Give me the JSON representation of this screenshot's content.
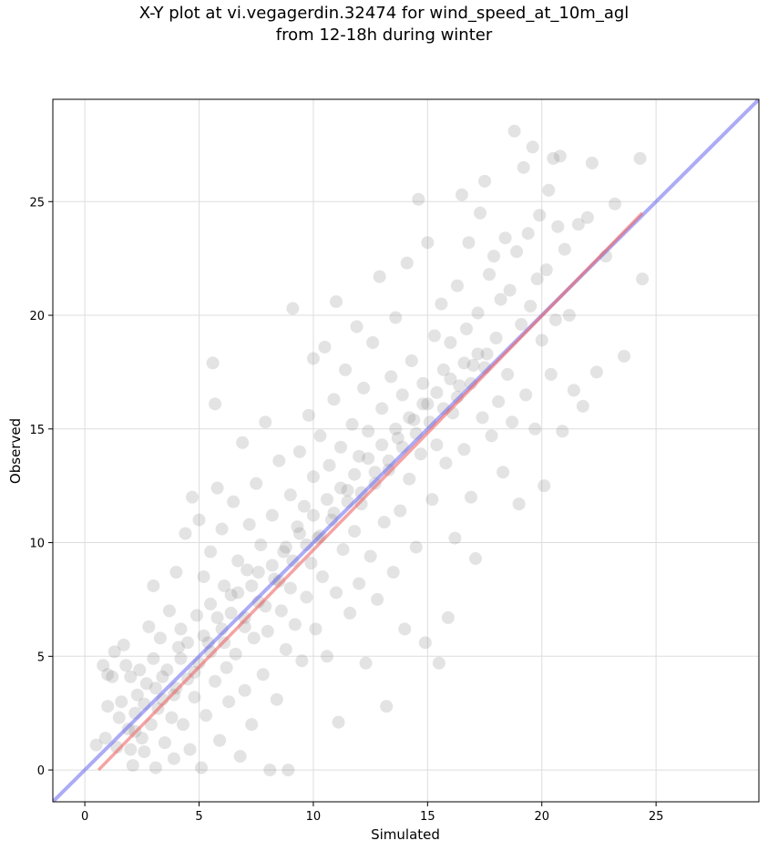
{
  "chart_data": {
    "type": "scatter",
    "title": "X-Y plot at vi.vegagerdin.32474 for wind_speed_at_10m_agl",
    "subtitle": "from 12-18h during winter",
    "xlabel": "Simulated",
    "ylabel": "Observed",
    "xlim": [
      -1.4,
      29.5
    ],
    "ylim": [
      -1.4,
      29.5
    ],
    "xticks": [
      0,
      5,
      10,
      15,
      20,
      25
    ],
    "yticks": [
      0,
      5,
      10,
      15,
      20,
      25
    ],
    "grid": true,
    "point_color": "#808080",
    "point_opacity": 0.22,
    "identity_line": {
      "color": "#6666ee",
      "x": [
        -1.4,
        29.5
      ],
      "y": [
        -1.4,
        29.5
      ]
    },
    "fit_line": {
      "color": "#ee6666",
      "x": [
        0.6,
        24.4
      ],
      "y": [
        0.0,
        24.5
      ]
    },
    "points": [
      [
        0.5,
        1.1
      ],
      [
        0.8,
        4.6
      ],
      [
        0.9,
        1.4
      ],
      [
        1.0,
        2.8
      ],
      [
        1.0,
        4.2
      ],
      [
        1.2,
        4.1
      ],
      [
        1.3,
        5.2
      ],
      [
        1.4,
        1.0
      ],
      [
        1.5,
        2.3
      ],
      [
        1.6,
        3.0
      ],
      [
        1.7,
        5.5
      ],
      [
        1.8,
        4.6
      ],
      [
        1.9,
        1.8
      ],
      [
        2.0,
        0.9
      ],
      [
        2.0,
        4.1
      ],
      [
        2.1,
        0.2
      ],
      [
        2.2,
        2.5
      ],
      [
        2.3,
        3.3
      ],
      [
        2.4,
        4.4
      ],
      [
        2.5,
        1.4
      ],
      [
        2.6,
        0.8
      ],
      [
        2.7,
        3.8
      ],
      [
        2.8,
        6.3
      ],
      [
        2.9,
        2.0
      ],
      [
        3.0,
        8.1
      ],
      [
        3.0,
        4.9
      ],
      [
        3.1,
        0.1
      ],
      [
        3.2,
        2.7
      ],
      [
        3.3,
        5.8
      ],
      [
        3.4,
        3.1
      ],
      [
        3.5,
        1.2
      ],
      [
        3.6,
        4.4
      ],
      [
        3.7,
        7.0
      ],
      [
        3.8,
        2.3
      ],
      [
        3.9,
        0.5
      ],
      [
        4.0,
        3.6
      ],
      [
        4.0,
        8.7
      ],
      [
        4.1,
        5.4
      ],
      [
        4.2,
        6.2
      ],
      [
        4.3,
        2.0
      ],
      [
        4.4,
        10.4
      ],
      [
        4.5,
        4.0
      ],
      [
        4.6,
        0.9
      ],
      [
        4.7,
        12.0
      ],
      [
        4.8,
        3.2
      ],
      [
        4.9,
        6.8
      ],
      [
        5.0,
        11.0
      ],
      [
        5.0,
        4.7
      ],
      [
        5.1,
        0.1
      ],
      [
        5.2,
        8.5
      ],
      [
        5.3,
        2.4
      ],
      [
        5.4,
        5.6
      ],
      [
        5.5,
        7.3
      ],
      [
        5.5,
        9.6
      ],
      [
        5.6,
        17.9
      ],
      [
        5.7,
        16.1
      ],
      [
        5.7,
        3.9
      ],
      [
        5.8,
        12.4
      ],
      [
        5.9,
        1.3
      ],
      [
        6.0,
        6.2
      ],
      [
        6.0,
        10.6
      ],
      [
        6.1,
        8.1
      ],
      [
        6.2,
        4.5
      ],
      [
        6.3,
        3.0
      ],
      [
        6.4,
        7.7
      ],
      [
        6.5,
        11.8
      ],
      [
        6.6,
        5.1
      ],
      [
        6.7,
        9.2
      ],
      [
        6.8,
        0.6
      ],
      [
        6.9,
        14.4
      ],
      [
        7.0,
        6.7
      ],
      [
        7.0,
        3.5
      ],
      [
        7.1,
        8.8
      ],
      [
        7.2,
        10.8
      ],
      [
        7.3,
        2.0
      ],
      [
        7.4,
        5.8
      ],
      [
        7.5,
        12.6
      ],
      [
        7.6,
        7.4
      ],
      [
        7.7,
        9.9
      ],
      [
        7.8,
        4.2
      ],
      [
        7.9,
        15.3
      ],
      [
        8.0,
        6.1
      ],
      [
        8.1,
        0.0
      ],
      [
        8.2,
        11.2
      ],
      [
        8.3,
        8.4
      ],
      [
        8.4,
        3.1
      ],
      [
        8.5,
        13.6
      ],
      [
        8.6,
        7.0
      ],
      [
        8.7,
        9.6
      ],
      [
        8.8,
        5.3
      ],
      [
        8.9,
        0.0
      ],
      [
        9.0,
        12.1
      ],
      [
        9.0,
        8.0
      ],
      [
        9.1,
        20.3
      ],
      [
        9.2,
        6.4
      ],
      [
        9.3,
        10.7
      ],
      [
        9.4,
        14.0
      ],
      [
        9.5,
        4.8
      ],
      [
        9.6,
        11.6
      ],
      [
        9.7,
        7.6
      ],
      [
        9.8,
        15.6
      ],
      [
        9.9,
        9.1
      ],
      [
        10.0,
        18.1
      ],
      [
        10.0,
        12.9
      ],
      [
        10.1,
        6.2
      ],
      [
        10.2,
        10.2
      ],
      [
        10.3,
        14.7
      ],
      [
        10.4,
        8.5
      ],
      [
        10.5,
        18.6
      ],
      [
        10.6,
        5.0
      ],
      [
        10.7,
        13.4
      ],
      [
        10.8,
        11.0
      ],
      [
        10.9,
        16.3
      ],
      [
        11.0,
        7.8
      ],
      [
        11.0,
        20.6
      ],
      [
        11.1,
        2.1
      ],
      [
        11.2,
        14.2
      ],
      [
        11.3,
        9.7
      ],
      [
        11.4,
        17.6
      ],
      [
        11.5,
        12.3
      ],
      [
        11.6,
        6.9
      ],
      [
        11.7,
        15.2
      ],
      [
        11.8,
        10.5
      ],
      [
        11.9,
        19.5
      ],
      [
        12.0,
        8.2
      ],
      [
        12.0,
        13.8
      ],
      [
        12.1,
        11.7
      ],
      [
        12.2,
        16.8
      ],
      [
        12.3,
        4.7
      ],
      [
        12.4,
        14.9
      ],
      [
        12.5,
        9.4
      ],
      [
        12.6,
        18.8
      ],
      [
        12.7,
        12.6
      ],
      [
        12.8,
        7.5
      ],
      [
        12.9,
        21.7
      ],
      [
        13.0,
        15.9
      ],
      [
        13.1,
        10.9
      ],
      [
        13.2,
        2.8
      ],
      [
        13.3,
        13.2
      ],
      [
        13.4,
        17.3
      ],
      [
        13.5,
        8.7
      ],
      [
        13.6,
        19.9
      ],
      [
        13.7,
        14.6
      ],
      [
        13.8,
        11.4
      ],
      [
        13.9,
        16.5
      ],
      [
        14.0,
        6.2
      ],
      [
        14.1,
        22.3
      ],
      [
        14.2,
        12.8
      ],
      [
        14.3,
        18.0
      ],
      [
        14.4,
        15.4
      ],
      [
        14.5,
        9.8
      ],
      [
        14.6,
        25.1
      ],
      [
        14.7,
        13.9
      ],
      [
        14.8,
        17.0
      ],
      [
        14.9,
        5.6
      ],
      [
        15.0,
        23.2
      ],
      [
        15.0,
        16.1
      ],
      [
        15.2,
        11.9
      ],
      [
        15.3,
        19.1
      ],
      [
        15.4,
        14.3
      ],
      [
        15.5,
        4.7
      ],
      [
        15.6,
        20.5
      ],
      [
        15.7,
        17.6
      ],
      [
        15.8,
        13.5
      ],
      [
        15.9,
        6.7
      ],
      [
        16.0,
        18.8
      ],
      [
        16.1,
        15.7
      ],
      [
        16.2,
        10.2
      ],
      [
        16.3,
        21.3
      ],
      [
        16.4,
        16.9
      ],
      [
        16.5,
        25.3
      ],
      [
        16.6,
        14.1
      ],
      [
        16.7,
        19.4
      ],
      [
        16.8,
        23.2
      ],
      [
        16.9,
        12.0
      ],
      [
        17.0,
        17.8
      ],
      [
        17.1,
        9.3
      ],
      [
        17.2,
        20.1
      ],
      [
        17.3,
        24.5
      ],
      [
        17.4,
        15.5
      ],
      [
        17.5,
        25.9
      ],
      [
        17.6,
        18.3
      ],
      [
        17.7,
        21.8
      ],
      [
        17.8,
        14.7
      ],
      [
        17.9,
        22.6
      ],
      [
        18.0,
        19.0
      ],
      [
        18.1,
        16.2
      ],
      [
        18.2,
        20.7
      ],
      [
        18.3,
        13.1
      ],
      [
        18.4,
        23.4
      ],
      [
        18.5,
        17.4
      ],
      [
        18.6,
        21.1
      ],
      [
        18.7,
        15.3
      ],
      [
        18.8,
        28.1
      ],
      [
        18.9,
        22.8
      ],
      [
        19.0,
        11.7
      ],
      [
        19.1,
        19.6
      ],
      [
        19.2,
        26.5
      ],
      [
        19.3,
        16.5
      ],
      [
        19.4,
        23.6
      ],
      [
        19.5,
        20.4
      ],
      [
        19.6,
        27.4
      ],
      [
        19.7,
        15.0
      ],
      [
        19.8,
        21.6
      ],
      [
        19.9,
        24.4
      ],
      [
        20.0,
        18.9
      ],
      [
        20.1,
        12.5
      ],
      [
        20.2,
        22.0
      ],
      [
        20.3,
        25.5
      ],
      [
        20.4,
        17.4
      ],
      [
        20.5,
        26.9
      ],
      [
        20.6,
        19.8
      ],
      [
        20.7,
        23.9
      ],
      [
        20.8,
        27.0
      ],
      [
        20.9,
        14.9
      ],
      [
        21.0,
        22.9
      ],
      [
        21.2,
        20.0
      ],
      [
        21.4,
        16.7
      ],
      [
        21.6,
        24.0
      ],
      [
        21.8,
        16.0
      ],
      [
        22.0,
        24.3
      ],
      [
        22.2,
        26.7
      ],
      [
        22.4,
        17.5
      ],
      [
        22.8,
        22.6
      ],
      [
        23.2,
        24.9
      ],
      [
        23.6,
        18.2
      ],
      [
        24.3,
        26.9
      ],
      [
        24.4,
        21.6
      ],
      [
        2.2,
        1.7
      ],
      [
        2.6,
        2.9
      ],
      [
        3.1,
        3.6
      ],
      [
        3.4,
        4.1
      ],
      [
        3.9,
        3.3
      ],
      [
        4.2,
        4.9
      ],
      [
        4.5,
        5.6
      ],
      [
        4.8,
        4.3
      ],
      [
        5.2,
        5.9
      ],
      [
        5.5,
        5.2
      ],
      [
        5.8,
        6.7
      ],
      [
        6.1,
        5.6
      ],
      [
        6.4,
        6.9
      ],
      [
        6.7,
        7.8
      ],
      [
        7.0,
        6.3
      ],
      [
        7.3,
        8.1
      ],
      [
        7.6,
        8.7
      ],
      [
        7.9,
        7.2
      ],
      [
        8.2,
        9.0
      ],
      [
        8.5,
        8.3
      ],
      [
        8.8,
        9.8
      ],
      [
        9.1,
        9.2
      ],
      [
        9.4,
        10.4
      ],
      [
        9.7,
        9.9
      ],
      [
        10.0,
        11.2
      ],
      [
        10.3,
        10.3
      ],
      [
        10.6,
        11.9
      ],
      [
        10.9,
        11.3
      ],
      [
        11.2,
        12.4
      ],
      [
        11.5,
        11.8
      ],
      [
        11.8,
        13.0
      ],
      [
        12.1,
        12.2
      ],
      [
        12.4,
        13.7
      ],
      [
        12.7,
        13.1
      ],
      [
        13.0,
        14.3
      ],
      [
        13.3,
        13.6
      ],
      [
        13.6,
        15.0
      ],
      [
        13.9,
        14.2
      ],
      [
        14.2,
        15.5
      ],
      [
        14.5,
        14.8
      ],
      [
        14.8,
        16.1
      ],
      [
        15.1,
        15.3
      ],
      [
        15.4,
        16.6
      ],
      [
        15.7,
        15.9
      ],
      [
        16.0,
        17.2
      ],
      [
        16.3,
        16.4
      ],
      [
        16.6,
        17.9
      ],
      [
        16.9,
        17.0
      ],
      [
        17.2,
        18.3
      ],
      [
        17.5,
        17.7
      ]
    ]
  }
}
